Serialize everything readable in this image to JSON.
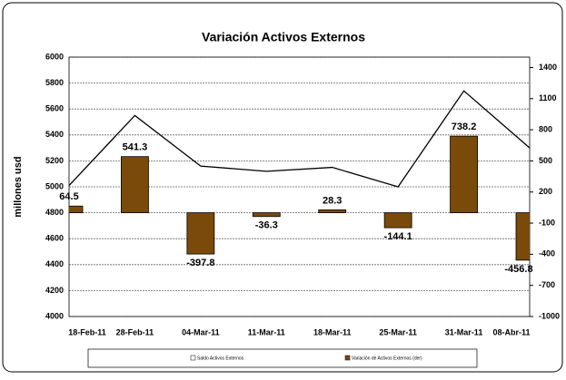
{
  "chart_data": {
    "type": "bar-line",
    "title": "Variación Activos Externos",
    "y_label": "millones usd",
    "categories": [
      "18-Feb-11",
      "28-Feb-11",
      "04-Mar-11",
      "11-Mar-11",
      "18-Mar-11",
      "25-Mar-11",
      "31-Mar-11",
      "08-Abr-11"
    ],
    "series": [
      {
        "name": "Saldo Activos Externos",
        "type": "line",
        "color": "#000000",
        "values": [
          5010,
          5550,
          5160,
          5120,
          5150,
          5000,
          5740,
          5300
        ]
      },
      {
        "name": "Variación de Activos Externos (der)",
        "type": "bar",
        "axis": "y2",
        "color": "#7a4a0a",
        "values": [
          64.5,
          541.3,
          -397.8,
          -36.3,
          28.3,
          -144.1,
          738.2,
          -456.8
        ]
      }
    ],
    "ylim": [
      4000,
      6000
    ],
    "yticks": [
      4000,
      4200,
      4400,
      4600,
      4800,
      5000,
      5200,
      5400,
      5600,
      5800,
      6000
    ],
    "y2lim": [
      -1000,
      1500
    ],
    "y2ticks": [
      -1000,
      -700,
      -400,
      -100,
      200,
      500,
      800,
      1100,
      1400
    ],
    "grid": true
  }
}
